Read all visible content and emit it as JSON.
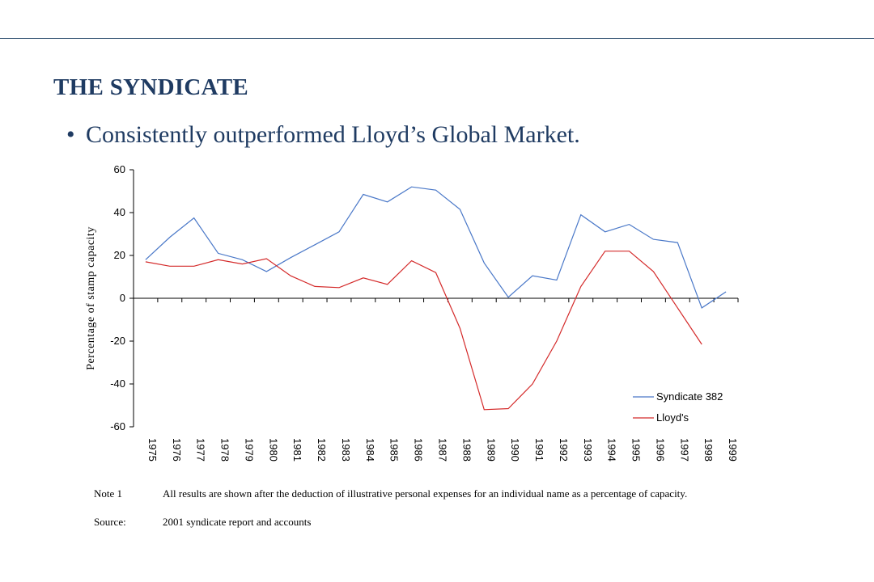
{
  "title": "THE SYNDICATE",
  "bullet": "Consistently outperformed Lloyd’s Global Market.",
  "notes": {
    "note_label": "Note 1",
    "note_text": "All results are shown after the deduction of illustrative personal expenses for an individual name as a percentage of capacity.",
    "source_label": "Source:",
    "source_text": "2001 syndicate report and accounts"
  },
  "chart_data": {
    "type": "line",
    "x": [
      "1975",
      "1976",
      "1977",
      "1978",
      "1979",
      "1980",
      "1981",
      "1982",
      "1983",
      "1984",
      "1985",
      "1986",
      "1987",
      "1988",
      "1989",
      "1990",
      "1991",
      "1992",
      "1993",
      "1994",
      "1995",
      "1996",
      "1997",
      "1998",
      "1999"
    ],
    "ylabel": "Percentage of stamp capacity",
    "ylim": [
      -60,
      60
    ],
    "yticks": [
      60,
      40,
      20,
      0,
      -20,
      -40,
      -60
    ],
    "legend": "bottom-right",
    "grid": false,
    "series": [
      {
        "name": "Syndicate 382",
        "color": "#4a78c8",
        "values": [
          18,
          28.5,
          37.5,
          21,
          18,
          12.5,
          19,
          25,
          31,
          48.5,
          45,
          52,
          50.5,
          41.5,
          16.5,
          0.5,
          10.5,
          8.5,
          39,
          31,
          34.5,
          27.5,
          26,
          -4.5,
          3
        ]
      },
      {
        "name": "Lloyd's",
        "color": "#d42a2a",
        "values": [
          17,
          15,
          15,
          18,
          16,
          18.5,
          10.5,
          5.5,
          5,
          9.5,
          6.5,
          17.5,
          12,
          -14,
          -52,
          -51.5,
          -40,
          -20,
          5.5,
          22,
          22,
          12.5,
          -4.5,
          -21.5,
          null
        ]
      }
    ]
  }
}
